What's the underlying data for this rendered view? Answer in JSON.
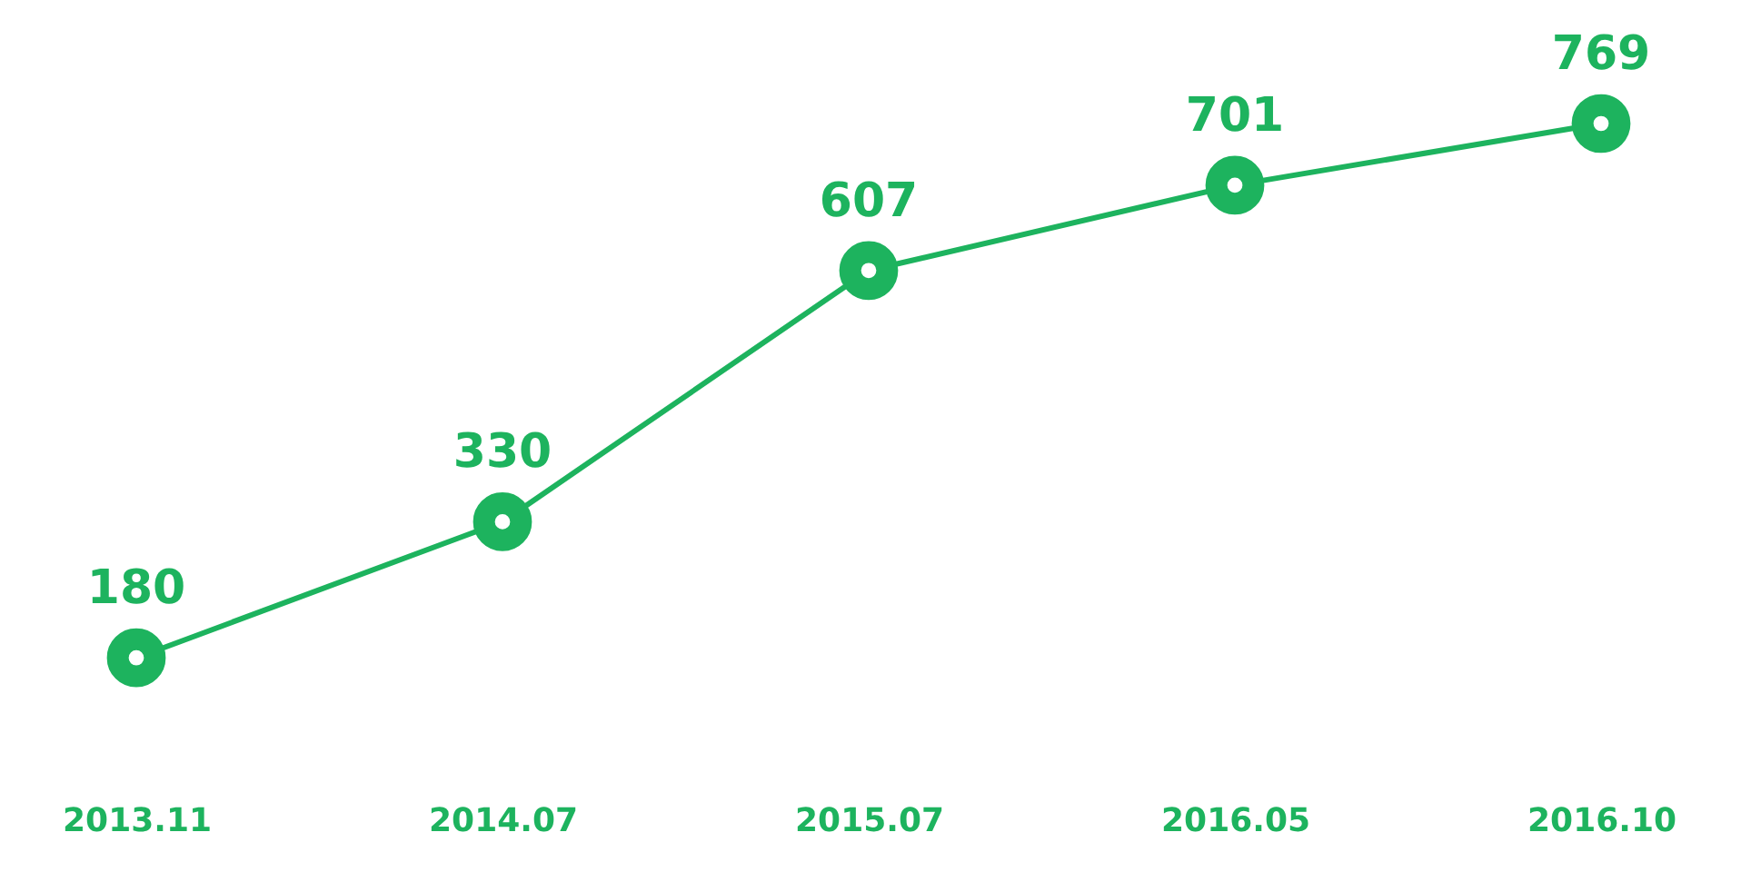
{
  "chart_data": {
    "type": "line",
    "categories": [
      "2013.11",
      "2014.07",
      "2015.07",
      "2016.05",
      "2016.10"
    ],
    "series": [
      {
        "color": "#1db35e",
        "values": [
          180,
          330,
          607,
          701,
          769
        ]
      }
    ],
    "data_labels": true,
    "marker": "circle",
    "line_style": "solid",
    "tick_labels": "x"
  }
}
